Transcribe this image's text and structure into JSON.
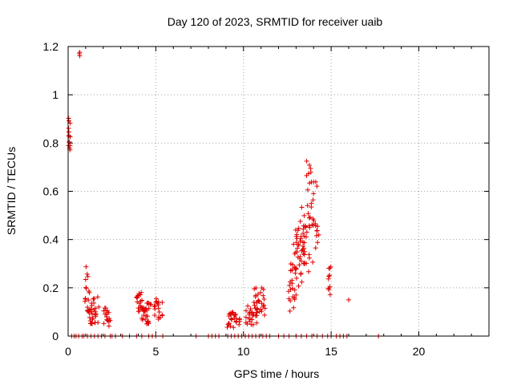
{
  "chart_data": {
    "type": "scatter",
    "title": "Day 120 of 2023, SRMTID for receiver uaib",
    "xlabel": "GPS time / hours",
    "ylabel": "SRMTID / TECUs",
    "xlim": [
      0,
      24
    ],
    "ylim": [
      0,
      1.2
    ],
    "xticks": [
      0,
      5,
      10,
      15,
      20
    ],
    "yticks": [
      0,
      0.2,
      0.4,
      0.6,
      0.8,
      1,
      1.2
    ],
    "xtick_labels": [
      "0",
      "5",
      "10",
      "15",
      "20"
    ],
    "ytick_labels": [
      "0",
      "0.2",
      "0.4",
      "0.6",
      "0.8",
      "1",
      "1.2"
    ],
    "grid": true,
    "marker": "+",
    "color": "#e00000",
    "series": [
      {
        "name": "SRMTID",
        "clusters": [
          {
            "x": [
              0.0,
              0.12
            ],
            "y": [
              0.76,
              0.91
            ],
            "n": 14
          },
          {
            "x": [
              0.62,
              0.68
            ],
            "y": [
              1.15,
              1.18
            ],
            "n": 3
          },
          {
            "x": [
              0.95,
              1.2
            ],
            "y": [
              0.1,
              0.29
            ],
            "n": 16
          },
          {
            "x": [
              1.2,
              1.8
            ],
            "y": [
              0.05,
              0.18
            ],
            "n": 30
          },
          {
            "x": [
              2.0,
              2.4
            ],
            "y": [
              0.04,
              0.12
            ],
            "n": 18
          },
          {
            "x": [
              3.9,
              4.3
            ],
            "y": [
              0.1,
              0.21
            ],
            "n": 18
          },
          {
            "x": [
              4.1,
              4.8
            ],
            "y": [
              0.05,
              0.14
            ],
            "n": 28
          },
          {
            "x": [
              4.9,
              5.4
            ],
            "y": [
              0.07,
              0.16
            ],
            "n": 18
          },
          {
            "x": [
              9.0,
              9.8
            ],
            "y": [
              0.03,
              0.1
            ],
            "n": 26
          },
          {
            "x": [
              10.1,
              10.8
            ],
            "y": [
              0.03,
              0.13
            ],
            "n": 28
          },
          {
            "x": [
              10.6,
              11.3
            ],
            "y": [
              0.08,
              0.2
            ],
            "n": 26
          },
          {
            "x": [
              12.5,
              13.0
            ],
            "y": [
              0.1,
              0.3
            ],
            "n": 24
          },
          {
            "x": [
              12.8,
              13.5
            ],
            "y": [
              0.2,
              0.45
            ],
            "n": 34
          },
          {
            "x": [
              13.2,
              13.8
            ],
            "y": [
              0.25,
              0.55
            ],
            "n": 30
          },
          {
            "x": [
              13.6,
              13.9
            ],
            "y": [
              0.6,
              0.73
            ],
            "n": 8
          },
          {
            "x": [
              13.8,
              14.3
            ],
            "y": [
              0.3,
              0.64
            ],
            "n": 22
          },
          {
            "x": [
              14.8,
              15.0
            ],
            "y": [
              0.16,
              0.3
            ],
            "n": 10
          }
        ],
        "points": [
          [
            16.0,
            0.15
          ]
        ],
        "zero_x": [
          0.2,
          0.35,
          0.45,
          0.6,
          0.8,
          0.9,
          1.1,
          1.3,
          1.5,
          1.7,
          1.9,
          2.1,
          2.4,
          2.5,
          2.7,
          3.1,
          3.5,
          3.9,
          4.2,
          4.6,
          4.8,
          5.0,
          5.4,
          7.3,
          8.0,
          8.2,
          8.4,
          8.6,
          9.1,
          9.3,
          9.5,
          9.7,
          9.9,
          10.1,
          10.3,
          10.5,
          10.7,
          10.9,
          11.1,
          11.3,
          11.5,
          12.0,
          12.3,
          12.6,
          13.0,
          13.3,
          13.6,
          13.9,
          14.2,
          14.5,
          14.8,
          15.0,
          15.3,
          15.5,
          15.7,
          15.9,
          17.7
        ]
      }
    ]
  }
}
